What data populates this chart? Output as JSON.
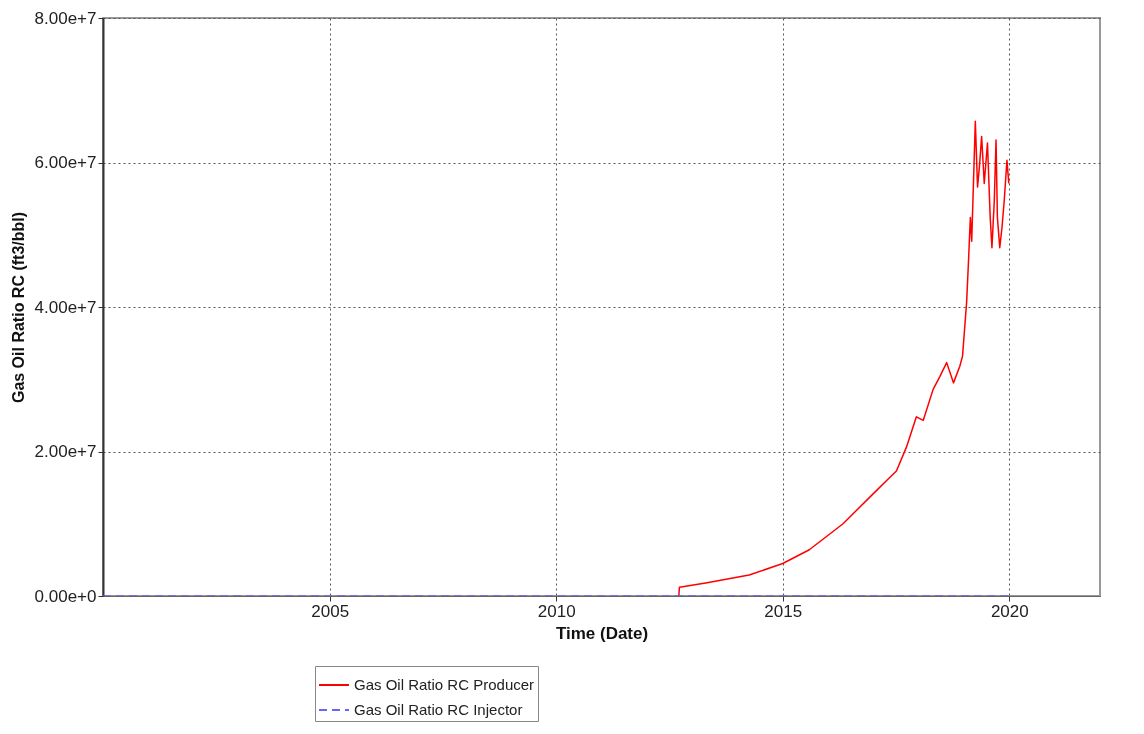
{
  "chart_data": {
    "type": "line",
    "xlabel": "Time (Date)",
    "ylabel": "Gas Oil Ratio RC (ft3/bbl)",
    "xlim": [
      "2000-01-01",
      "2022-01-01"
    ],
    "xticks": [
      {
        "value": "2005-01-01",
        "label": "2005"
      },
      {
        "value": "2010-01-01",
        "label": "2010"
      },
      {
        "value": "2015-01-01",
        "label": "2015"
      },
      {
        "value": "2020-01-01",
        "label": "2020"
      }
    ],
    "ylim": [
      0,
      80000000
    ],
    "yticks": [
      {
        "value": 0,
        "label": "0.00e+0"
      },
      {
        "value": 20000000,
        "label": "2.00e+7"
      },
      {
        "value": 40000000,
        "label": "4.00e+7"
      },
      {
        "value": 60000000,
        "label": "6.00e+7"
      },
      {
        "value": 80000000,
        "label": "8.00e+7"
      }
    ],
    "grid": true,
    "legend": "bottom",
    "series": [
      {
        "name": "Gas Oil Ratio RC Producer",
        "color": "#ff0000",
        "line_style": "solid",
        "x": [
          "2012-09-15",
          "2012-09-20",
          "2013-04-20",
          "2014-04-05",
          "2015-01-01",
          "2015-08-03",
          "2016-05-01",
          "2016-12-27",
          "2017-05-12",
          "2017-07-05",
          "2017-09-24",
          "2017-12-13",
          "2018-02-06",
          "2018-04-27",
          "2018-06-21",
          "2018-08-14",
          "2018-10-08",
          "2018-11-28",
          "2018-12-20",
          "2019-01-22",
          "2019-02-06",
          "2019-02-21",
          "2019-03-04",
          "2019-04-02",
          "2019-04-20",
          "2019-05-05",
          "2019-05-23",
          "2019-06-13",
          "2019-07-09",
          "2019-07-31",
          "2019-08-14",
          "2019-09-02",
          "2019-09-16",
          "2019-09-27",
          "2019-10-16",
          "2019-11-03",
          "2019-11-21",
          "2019-12-13",
          "2019-12-28"
        ],
        "values": [
          0,
          1200000,
          1800000,
          2900000,
          4500000,
          6400000,
          10000000,
          14100000,
          16400000,
          17300000,
          20600000,
          24800000,
          24300000,
          28600000,
          30400000,
          32300000,
          29500000,
          31800000,
          33200000,
          40700000,
          46300000,
          52400000,
          49100000,
          65700000,
          56600000,
          59400000,
          63600000,
          57100000,
          62700000,
          52400000,
          48200000,
          54700000,
          63100000,
          52400000,
          48200000,
          51000000,
          54700000,
          60300000,
          57100000
        ]
      },
      {
        "name": "Gas Oil Ratio RC Injector",
        "color": "#6666ff",
        "line_style": "dashed",
        "x": [
          "2000-01-01",
          "2019-12-28"
        ],
        "values": [
          0,
          0
        ]
      }
    ]
  }
}
